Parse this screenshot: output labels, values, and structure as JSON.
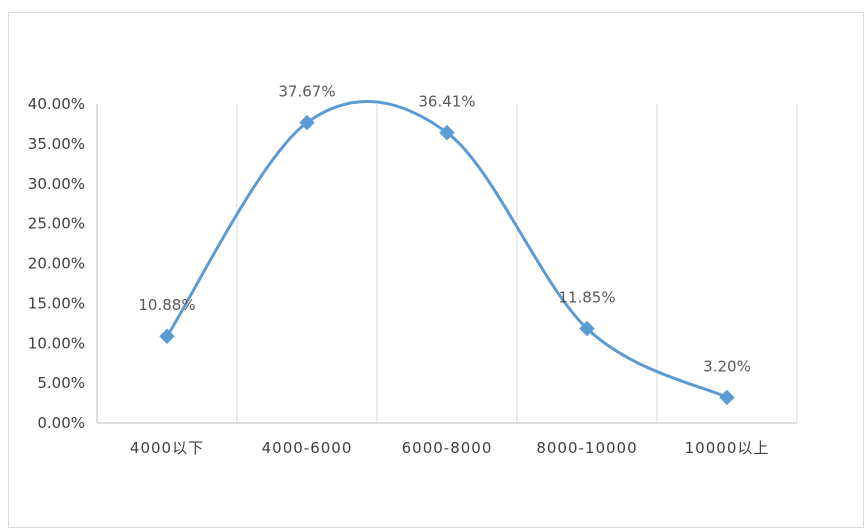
{
  "chart_data": {
    "type": "line",
    "categories": [
      "4000以下",
      "4000-6000",
      "6000-8000",
      "8000-10000",
      "10000以上"
    ],
    "series": [
      {
        "values": [
          10.88,
          37.67,
          36.41,
          11.85,
          3.2
        ],
        "labels": [
          "10.88%",
          "37.67%",
          "36.41%",
          "11.85%",
          "3.20%"
        ]
      }
    ],
    "y_ticks": [
      "0.00%",
      "5.00%",
      "10.00%",
      "15.00%",
      "20.00%",
      "25.00%",
      "30.00%",
      "35.00%",
      "40.00%"
    ],
    "ylim": [
      0,
      40
    ],
    "smooth": true,
    "marker": "diamond",
    "grid": "vertical",
    "legend": "none",
    "colors": {
      "line": "#5b9bd5",
      "grid": "#d9d9d9",
      "axis": "#bfbfbf"
    }
  }
}
